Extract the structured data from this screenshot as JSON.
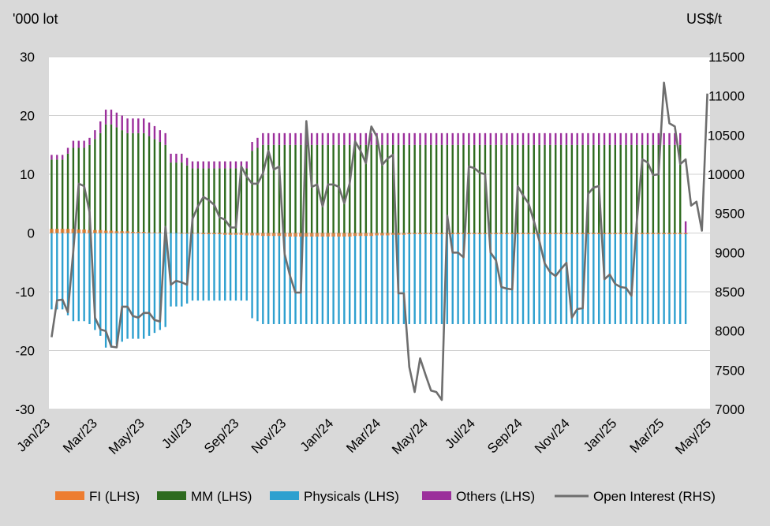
{
  "chart_data": {
    "type": "bar",
    "left_axis_unit": "'000 lot",
    "right_axis_unit": "US$/t",
    "left_axis": {
      "min": -30,
      "max": 30,
      "ticks": [
        -30,
        -20,
        -10,
        0,
        10,
        20,
        30
      ],
      "tick_labels": [
        "-30",
        "-20",
        "-10",
        "0",
        "10",
        "20",
        "30"
      ]
    },
    "right_axis": {
      "min": 7000,
      "max": 11500,
      "ticks": [
        7000,
        7500,
        8000,
        8500,
        9000,
        9500,
        10000,
        10500,
        11000,
        11500
      ],
      "tick_labels": [
        "7000",
        "7500",
        "8000",
        "8500",
        "9000",
        "9500",
        "10000",
        "10500",
        "11000",
        "11500"
      ]
    },
    "x_tick_labels": [
      "Jan/23",
      "Mar/23",
      "May/23",
      "Jul/23",
      "Sep/23",
      "Nov/23",
      "Jan/24",
      "Mar/24",
      "May/24",
      "Jul/24",
      "Sep/24",
      "Nov/24",
      "Jan/25",
      "Mar/25",
      "May/25"
    ],
    "grid": true,
    "legend_position": "bottom",
    "colors": {
      "plot_background": "#ffffff",
      "page_background": "#d9d9d9",
      "FI": "#ed7d31",
      "MM": "#2e6b1f",
      "Physicals": "#2ea0cf",
      "Others": "#9b2f9b",
      "Open Interest": "#6e6e6e",
      "gridline": "#d0d0d0"
    },
    "legend": [
      {
        "key": "FI",
        "label": "FI (LHS)"
      },
      {
        "key": "MM",
        "label": "MM (LHS)"
      },
      {
        "key": "Physicals",
        "label": "Physicals (LHS)"
      },
      {
        "key": "Others",
        "label": "Others (LHS)"
      },
      {
        "key": "Open Interest",
        "label": "Open Interest (RHS)"
      }
    ],
    "mm_pos": [
      12.5,
      12.5,
      12.5,
      13.5,
      14.5,
      14.5,
      14.5,
      15.0,
      16.0,
      17.0,
      18.5,
      18.5,
      18.0,
      17.5,
      17.0,
      17.0,
      17.0,
      17.0,
      16.5,
      16.0,
      15.5,
      15.0,
      12.0,
      12.0,
      12.0,
      11.5,
      11.0,
      11.0,
      11.0,
      11.0,
      11.0,
      11.0,
      11.0,
      11.0,
      11.0,
      11.0,
      11.0,
      14.0,
      14.5,
      15.0,
      15.0,
      15.0,
      15.0,
      15.0,
      15.0,
      15.0,
      15.0,
      15.0,
      15.0,
      15.0,
      15.0,
      15.0,
      15.0,
      15.0,
      15.0,
      15.0,
      15.0,
      15.0,
      15.0,
      15.0,
      15.0,
      15.0,
      15.0,
      15.0,
      15.0,
      15.0,
      15.0,
      15.0,
      15.0,
      15.0,
      15.0,
      15.0,
      15.0,
      15.0,
      15.0,
      15.0,
      15.0,
      15.0,
      15.0,
      15.0,
      15.0,
      15.0,
      15.0,
      15.0,
      15.0,
      15.0,
      15.0,
      15.0,
      15.0,
      15.0,
      15.0,
      15.0,
      15.0,
      15.0,
      15.0,
      15.0,
      15.0,
      15.0,
      15.0,
      15.0,
      15.0,
      15.0,
      15.0,
      15.0,
      15.0,
      15.0,
      15.0,
      15.0,
      15.0,
      15.0,
      15.0,
      15.0,
      15.0,
      15.0,
      15.0,
      15.0,
      15.0
    ],
    "mm_neg": [
      0,
      0,
      0,
      0,
      0,
      0,
      0,
      0,
      0,
      0,
      0,
      0,
      0,
      0,
      0,
      0,
      0,
      0,
      0,
      0,
      0,
      0,
      0,
      0,
      0,
      0,
      0,
      0,
      0,
      0,
      0,
      0,
      0,
      0,
      0,
      0,
      0,
      0,
      0,
      0,
      0,
      0,
      0,
      0,
      0,
      0,
      0,
      0,
      0,
      0,
      0,
      0,
      0,
      0,
      0,
      0,
      0,
      0,
      0,
      0,
      0,
      0,
      0,
      0,
      0,
      0,
      0,
      0,
      0,
      0,
      0,
      0,
      0,
      0,
      0,
      0,
      0,
      0,
      0,
      0,
      0,
      0,
      0,
      0,
      0,
      0,
      0,
      0,
      0,
      0,
      0,
      0,
      0,
      0,
      0,
      0,
      0,
      0,
      0,
      0,
      0,
      0,
      0,
      0,
      0,
      0,
      0,
      0,
      0,
      0,
      0,
      0,
      0,
      0,
      0,
      0,
      0,
      0,
      0,
      0,
      0,
      0
    ],
    "phys_pos": [
      0,
      0,
      0,
      0,
      0,
      0,
      0,
      0,
      0,
      0,
      0,
      0,
      0,
      0,
      0,
      0,
      0,
      0,
      0,
      0,
      0,
      0,
      0,
      0,
      0,
      0,
      0,
      0,
      0,
      0,
      0,
      0,
      0,
      0,
      0,
      0,
      0,
      0,
      0,
      0,
      0,
      0,
      0,
      0,
      0,
      0,
      0,
      0,
      0,
      0,
      0,
      0,
      0,
      0,
      0,
      0,
      0,
      0,
      0,
      0,
      0,
      0,
      0,
      0,
      0,
      0,
      0,
      0,
      0,
      0,
      0,
      0,
      0,
      0,
      0,
      0,
      0,
      0,
      0,
      0,
      0,
      0,
      0,
      0,
      0,
      0,
      0,
      0,
      0,
      0,
      0,
      0,
      0,
      0,
      0,
      0,
      0,
      0,
      0,
      0,
      0,
      0,
      0,
      0,
      0,
      0,
      0,
      0,
      0,
      0,
      0,
      0,
      0,
      0,
      0,
      0,
      0,
      0,
      0,
      0,
      0,
      0
    ],
    "phys_neg": [
      -13.0,
      -13.0,
      -13.0,
      -14.0,
      -15.0,
      -15.0,
      -15.0,
      -15.5,
      -16.5,
      -17.5,
      -19.5,
      -19.5,
      -19.0,
      -18.5,
      -18.0,
      -18.0,
      -18.0,
      -18.0,
      -17.5,
      -17.0,
      -16.5,
      -16.0,
      -12.5,
      -12.5,
      -12.5,
      -12.0,
      -11.5,
      -11.5,
      -11.5,
      -11.5,
      -11.5,
      -11.5,
      -11.5,
      -11.5,
      -11.5,
      -11.5,
      -11.5,
      -14.5,
      -15.0,
      -15.5,
      -15.5,
      -15.5,
      -15.5,
      -15.5,
      -15.5,
      -15.5,
      -15.5,
      -15.5,
      -15.5,
      -15.5,
      -15.5,
      -15.5,
      -15.5,
      -15.5,
      -15.5,
      -15.5,
      -15.5,
      -15.5,
      -15.5,
      -15.5,
      -15.5,
      -15.5,
      -15.5,
      -15.5,
      -15.5,
      -15.5,
      -15.5,
      -15.5,
      -15.5,
      -15.5,
      -15.5,
      -15.5,
      -15.5,
      -15.5,
      -15.5,
      -15.5,
      -15.5,
      -15.5,
      -15.5,
      -15.5,
      -15.5,
      -15.5,
      -15.5,
      -15.5,
      -15.5,
      -15.5,
      -15.5,
      -15.5,
      -15.5,
      -15.5,
      -15.5,
      -15.5,
      -15.5,
      -15.5,
      -15.5,
      -15.5,
      -15.5,
      -15.5,
      -15.5,
      -15.5,
      -15.5,
      -15.5,
      -15.5,
      -15.5,
      -15.5,
      -15.5,
      -15.5,
      -15.5,
      -15.5,
      -15.5,
      -15.5,
      -15.5,
      -15.5,
      -15.5,
      -15.5,
      -15.5,
      -15.5,
      -15.5
    ],
    "others_pos": [
      0.8,
      0.8,
      0.8,
      1.0,
      1.2,
      1.2,
      1.2,
      1.2,
      1.5,
      2.0,
      2.5,
      2.5,
      2.5,
      2.5,
      2.5,
      2.5,
      2.5,
      2.5,
      2.3,
      2.2,
      2.0,
      2.0,
      1.5,
      1.5,
      1.5,
      1.3,
      1.2,
      1.2,
      1.2,
      1.2,
      1.2,
      1.2,
      1.2,
      1.2,
      1.2,
      1.2,
      1.2,
      1.5,
      1.7,
      2.0,
      2.0,
      2.0,
      2.0,
      2.0,
      2.0,
      2.0,
      2.0,
      2.0,
      2.0,
      2.0,
      2.0,
      2.0,
      2.0,
      2.0,
      2.0,
      2.0,
      2.0,
      2.0,
      2.0,
      2.0,
      2.0,
      2.0,
      2.0,
      2.0,
      2.0,
      2.0,
      2.0,
      2.0,
      2.0,
      2.0,
      2.0,
      2.0,
      2.0,
      2.0,
      2.0,
      2.0,
      2.0,
      2.0,
      2.0,
      2.0,
      2.0,
      2.0,
      2.0,
      2.0,
      2.0,
      2.0,
      2.0,
      2.0,
      2.0,
      2.0,
      2.0,
      2.0,
      2.0,
      2.0,
      2.0,
      2.0,
      2.0,
      2.0,
      2.0,
      2.0,
      2.0,
      2.0,
      2.0,
      2.0,
      2.0,
      2.0,
      2.0,
      2.0,
      2.0,
      2.0,
      2.0,
      2.0,
      2.0,
      2.0,
      2.0,
      2.0,
      2.0,
      2.0
    ],
    "fi": [
      0.7,
      0.7,
      0.7,
      0.7,
      0.7,
      0.6,
      0.6,
      0.5,
      0.5,
      0.5,
      0.4,
      0.4,
      0.3,
      0.3,
      0.3,
      0.2,
      0.2,
      0.2,
      0.1,
      0.1,
      0.1,
      0.0,
      0.0,
      0.0,
      -0.1,
      -0.1,
      -0.1,
      -0.1,
      -0.2,
      -0.2,
      -0.2,
      -0.2,
      -0.3,
      -0.3,
      -0.3,
      -0.3,
      -0.4,
      -0.4,
      -0.4,
      -0.5,
      -0.5,
      -0.5,
      -0.5,
      -0.6,
      -0.6,
      -0.6,
      -0.6,
      -0.6,
      -0.6,
      -0.6,
      -0.6,
      -0.6,
      -0.6,
      -0.6,
      -0.6,
      -0.6,
      -0.5,
      -0.5,
      -0.5,
      -0.5,
      -0.4,
      -0.4,
      -0.4,
      -0.3,
      -0.3,
      -0.3,
      -0.2,
      -0.2,
      -0.2,
      -0.2,
      -0.2,
      -0.2,
      -0.2,
      -0.2,
      -0.2,
      -0.2,
      -0.2,
      -0.2,
      -0.2,
      -0.2,
      -0.2,
      -0.2,
      -0.2,
      -0.2,
      -0.2,
      -0.2,
      -0.2,
      -0.2,
      -0.2,
      -0.2,
      -0.2,
      -0.2,
      -0.2,
      -0.2,
      -0.2,
      -0.2,
      -0.2,
      -0.2,
      -0.2,
      -0.2,
      -0.2,
      -0.2,
      -0.2,
      -0.2,
      -0.2,
      -0.2,
      -0.2,
      -0.2,
      -0.2,
      -0.2,
      -0.2,
      -0.2,
      -0.2,
      -0.2,
      -0.2,
      -0.2,
      -0.2,
      -0.2
    ],
    "open_interest": [
      7920,
      8390,
      8400,
      8240,
      9020,
      9880,
      9850,
      9520,
      8170,
      8020,
      8000,
      7800,
      7790,
      8310,
      8310,
      8190,
      8170,
      8230,
      8230,
      8140,
      8120,
      9330,
      8590,
      8640,
      8620,
      8590,
      9430,
      9590,
      9710,
      9670,
      9610,
      9450,
      9420,
      9320,
      9320,
      10100,
      9970,
      9880,
      9880,
      10010,
      10300,
      10060,
      10100,
      8980,
      8700,
      8490,
      8490,
      10680,
      9840,
      9870,
      9590,
      9870,
      9870,
      9840,
      9630,
      9880,
      10420,
      10300,
      10140,
      10610,
      10480,
      10120,
      10200,
      10250,
      8480,
      8480,
      7540,
      7220,
      7650,
      7440,
      7240,
      7220,
      7120,
      9470,
      9000,
      9000,
      8940,
      10100,
      10080,
      10020,
      10000,
      9000,
      8900,
      8560,
      8540,
      8530,
      9850,
      9730,
      9630,
      9400,
      9150,
      8860,
      8750,
      8700,
      8790,
      8870,
      8170,
      8280,
      8290,
      9750,
      9830,
      9850,
      8660,
      8720,
      8600,
      8560,
      8550,
      8450,
      9410,
      10190,
      10150,
      9990,
      10000,
      11170,
      10650,
      10610,
      10130,
      10190,
      9600,
      9650,
      9280,
      11030
    ]
  }
}
